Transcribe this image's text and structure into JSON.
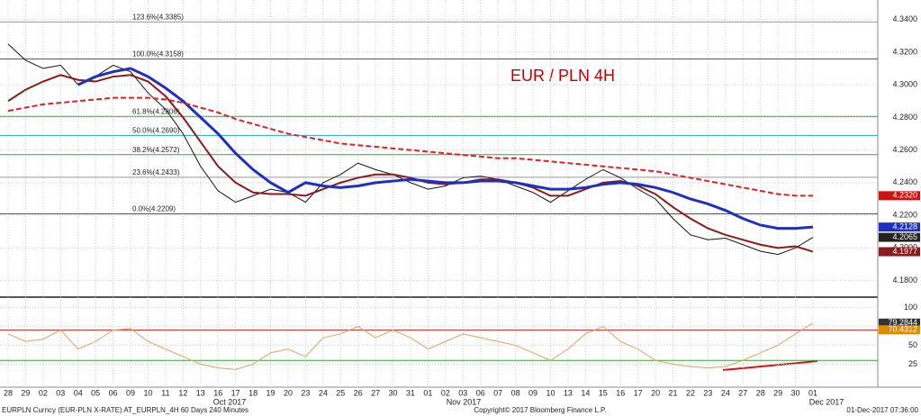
{
  "chart_data": [
    {
      "type": "line",
      "title": "EUR / PLN 4H",
      "categories": [
        "28",
        "29",
        "02",
        "03",
        "04",
        "05",
        "06",
        "09",
        "10",
        "11",
        "12",
        "13",
        "16",
        "17",
        "18",
        "19",
        "20",
        "23",
        "24",
        "25",
        "26",
        "27",
        "30",
        "31",
        "01",
        "02",
        "03",
        "06",
        "07",
        "08",
        "09",
        "10",
        "13",
        "14",
        "15",
        "16",
        "17",
        "20",
        "21",
        "22",
        "23",
        "24",
        "27",
        "28",
        "29",
        "30",
        "01"
      ],
      "series": [
        {
          "color": "#111111",
          "values": [
            4.325,
            4.315,
            4.31,
            4.312,
            4.3,
            4.305,
            4.312,
            4.308,
            4.295,
            4.285,
            4.27,
            4.25,
            4.235,
            4.228,
            4.232,
            4.236,
            4.234,
            4.228,
            4.24,
            4.245,
            4.252,
            4.248,
            4.245,
            4.24,
            4.236,
            4.238,
            4.243,
            4.244,
            4.242,
            4.238,
            4.234,
            4.228,
            4.235,
            4.242,
            4.248,
            4.243,
            4.236,
            4.23,
            4.218,
            4.208,
            4.205,
            4.206,
            4.202,
            4.198,
            4.196,
            4.2,
            4.2065
          ]
        },
        {
          "color": "#8b1a1a",
          "values": [
            4.29,
            4.297,
            4.302,
            4.306,
            4.303,
            4.302,
            4.305,
            4.306,
            4.302,
            4.293,
            4.28,
            4.265,
            4.25,
            4.24,
            4.234,
            4.233,
            4.233,
            4.232,
            4.236,
            4.24,
            4.243,
            4.245,
            4.245,
            4.243,
            4.24,
            4.239,
            4.24,
            4.242,
            4.242,
            4.24,
            4.237,
            4.232,
            4.232,
            4.236,
            4.24,
            4.241,
            4.238,
            4.233,
            4.225,
            4.218,
            4.212,
            4.208,
            4.205,
            4.202,
            4.2,
            4.201,
            4.1977
          ]
        },
        {
          "color": "#1f2fbf",
          "values": [
            null,
            null,
            null,
            null,
            4.3,
            4.305,
            4.308,
            4.31,
            4.305,
            4.298,
            4.29,
            4.28,
            4.27,
            4.258,
            4.248,
            4.24,
            4.234,
            4.24,
            4.238,
            4.237,
            4.238,
            4.24,
            4.241,
            4.242,
            4.241,
            4.24,
            4.24,
            4.241,
            4.241,
            4.24,
            4.238,
            4.236,
            4.236,
            4.237,
            4.239,
            4.24,
            4.239,
            4.237,
            4.234,
            4.23,
            4.227,
            4.223,
            4.218,
            4.214,
            4.212,
            4.212,
            4.2128
          ]
        },
        {
          "color": "#dd2222",
          "dashed": true,
          "values": [
            4.284,
            4.286,
            4.288,
            4.289,
            4.29,
            4.291,
            4.292,
            4.292,
            4.292,
            4.291,
            4.289,
            4.286,
            4.283,
            4.279,
            4.276,
            4.273,
            4.27,
            4.268,
            4.266,
            4.264,
            4.263,
            4.262,
            4.261,
            4.26,
            4.259,
            4.258,
            4.257,
            4.256,
            4.255,
            4.255,
            4.254,
            4.253,
            4.252,
            4.251,
            4.25,
            4.249,
            4.248,
            4.247,
            4.245,
            4.243,
            4.241,
            4.239,
            4.237,
            4.235,
            4.233,
            4.232,
            4.232
          ]
        }
      ],
      "ylim": [
        4.1726,
        4.3492
      ],
      "yticks": [
        {
          "value": 4.18,
          "label": "4.1800"
        },
        {
          "value": 4.2,
          "label": "4.2000"
        },
        {
          "value": 4.22,
          "label": "4.2200"
        },
        {
          "value": 4.24,
          "label": "4.2400"
        },
        {
          "value": 4.26,
          "label": "4.2600"
        },
        {
          "value": 4.28,
          "label": "4.2800"
        },
        {
          "value": 4.3,
          "label": "4.3000"
        },
        {
          "value": 4.32,
          "label": "4.3200"
        },
        {
          "value": 4.34,
          "label": "4.3400"
        }
      ],
      "grid": true,
      "levels": [
        {
          "value": 4.3385,
          "label": "123.6%(4.3385)",
          "color": "#999999"
        },
        {
          "value": 4.3158,
          "label": "100.0%(4.3158)",
          "color": "#a33a3a"
        },
        {
          "value": 4.2806,
          "label": "61.8%(4.2806)",
          "color": "#33aa33"
        },
        {
          "value": 4.269,
          "label": "50.0%(4.2690)",
          "color": "#22aacc"
        },
        {
          "value": 4.2572,
          "label": "38.2%(4.2572)",
          "color": "#33aa33"
        },
        {
          "value": 4.2433,
          "label": "23.6%(4.2433)",
          "color": "#999999"
        },
        {
          "value": 4.2209,
          "label": "0.0%(4.2209)",
          "color": "#cc2222"
        }
      ],
      "tags": [
        {
          "value": 4.232,
          "label": "4.2320",
          "color": "#cc1111"
        },
        {
          "value": 4.2128,
          "label": "4.2128",
          "color": "#1f2fbf"
        },
        {
          "value": 4.2065,
          "label": "4.2065",
          "color": "#222222"
        },
        {
          "value": 4.1977,
          "label": "4.1977",
          "color": "#8b1a1a"
        }
      ]
    },
    {
      "type": "line",
      "series": [
        {
          "color": "#e0a060",
          "values": [
            65,
            55,
            58,
            70,
            45,
            55,
            70,
            72,
            55,
            45,
            35,
            25,
            20,
            18,
            25,
            40,
            45,
            35,
            60,
            65,
            75,
            60,
            70,
            60,
            45,
            55,
            65,
            60,
            55,
            50,
            40,
            30,
            45,
            65,
            75,
            55,
            45,
            30,
            25,
            22,
            20,
            22,
            30,
            40,
            50,
            65,
            79.2844
          ]
        }
      ],
      "ylim": [
        -3,
        110
      ],
      "yticks": [
        25,
        50,
        75,
        100
      ],
      "levels": [
        {
          "value": 70,
          "color": "#cc2222"
        },
        {
          "value": 30,
          "color": "#33aa33"
        }
      ],
      "tags": [
        {
          "value": 79.2844,
          "label": "79.2844",
          "color": "#333333"
        },
        {
          "value": 70.4312,
          "label": "70.4312",
          "color": "#e08a00"
        }
      ]
    }
  ],
  "x_axis_months": [
    "Oct 2017",
    "Nov 2017",
    "Dec 2017"
  ],
  "footer": {
    "left": "EURPLN Curncy (EUR-PLN X-RATE) AT_EURPLN_4H 60 Days 240 Minutes",
    "center": "Copyright© 2017 Bloomberg Finance L.P.",
    "right": "01-Dec-2017 07:36:00"
  }
}
